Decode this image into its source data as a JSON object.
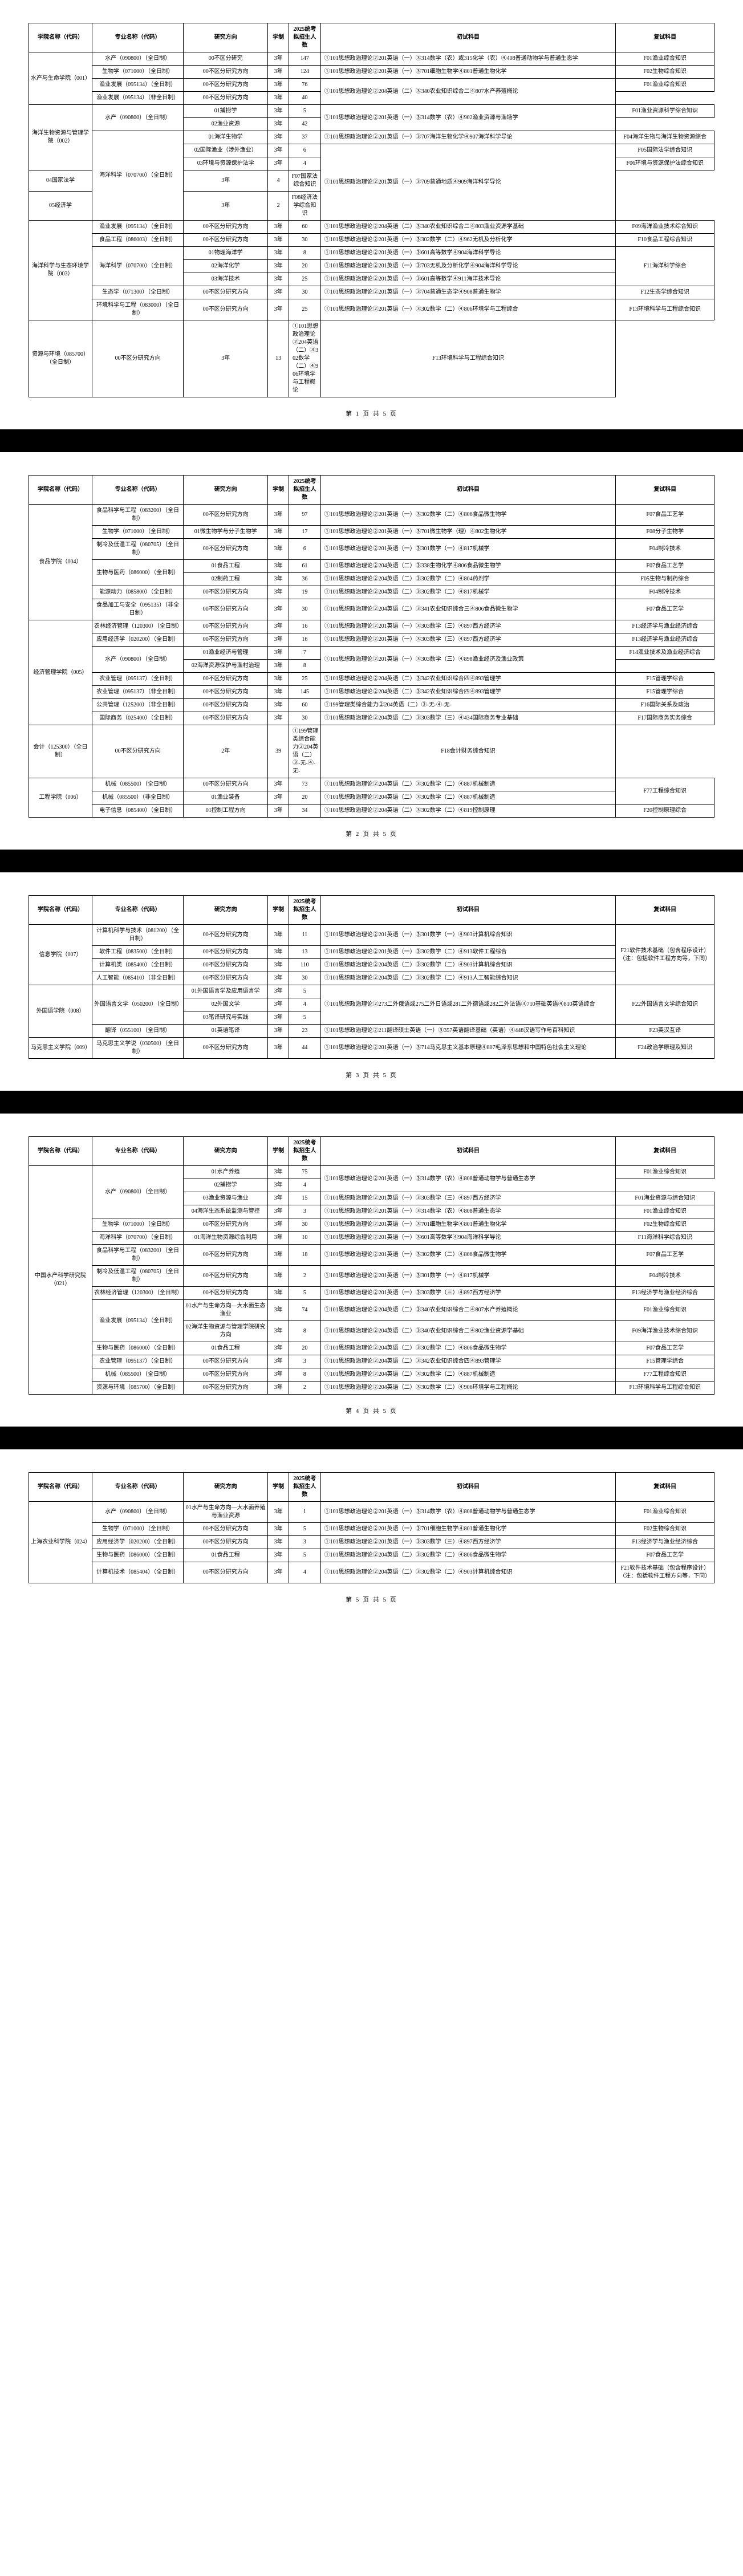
{
  "headers": {
    "school": "学院名称（代码）",
    "major": "专业名称（代码）",
    "direction": "研究方向",
    "system": "学制",
    "quota": "2025统考拟招生人数",
    "exam": "初试科目",
    "reexam": "复试科目"
  },
  "footer_prefix": "第",
  "footer_mid": "页 共",
  "footer_suffix": "页",
  "footer_total": "5",
  "pages": [
    {
      "num": "1",
      "rows": [
        {
          "school": "水产与生命学院（001）",
          "srs": 4,
          "major": "水产（090800）（全日制）",
          "mrs": 1,
          "dir": "00不区分研究",
          "sys": "3年",
          "q": "147",
          "ex": "①101思想政治理论②201英语（一）③314数学（农）或315化学（农）④408普通动物学与普通生态学",
          "re": "F01渔业综合知识"
        },
        {
          "major": "生物学（071000）（全日制）",
          "mrs": 1,
          "dir": "00不区分研究方向",
          "sys": "3年",
          "q": "124",
          "ex": "①101思想政治理论②201英语（一）③701细胞生物学④801普通生物化学",
          "re": "F02生物综合知识"
        },
        {
          "major": "渔业发展（095134）（全日制）",
          "mrs": 1,
          "dir": "00不区分研究方向",
          "sys": "3年",
          "q": "76",
          "exrs": 2,
          "ex": "①101思想政治理论②204英语（二）③340农业知识综合二④807水产养殖概论",
          "re": "F01渔业综合知识"
        },
        {
          "major": "渔业发展（095134）（非全日制）",
          "mrs": 1,
          "dir": "00不区分研究方向",
          "sys": "3年",
          "q": "40"
        },
        {
          "school": "海洋生物资源与管理学院（002）",
          "srs": 5,
          "major": "水产（090800）（全日制）",
          "mrs": 2,
          "dir": "01捕捞学",
          "sys": "3年",
          "q": "5",
          "exrs": 2,
          "ex": "①101思想政治理论②201英语（一）③314数学（农）④902渔业资源与渔场学",
          "re": "F01渔业资源科学综合知识"
        },
        {
          "dir": "02渔业资源",
          "sys": "3年",
          "q": "42"
        },
        {
          "major": "海洋科学（070700）（全日制）",
          "mrs": 5,
          "dir": "01海洋生物学",
          "sys": "3年",
          "q": "37",
          "ex": "①101思想政治理论②201英语（一）③707海洋生物化学④907海洋科学导论",
          "re": "F04海洋生物与海洋生物资源综合"
        },
        {
          "dir": "02国际渔业（涉外渔业）",
          "sys": "3年",
          "q": "6",
          "exrs": 4,
          "ex": "①101思想政治理论②201英语（一）③709普通地质④909海洋科学导论",
          "re": "F05国际法学综合知识"
        },
        {
          "dir": "03环境与资源保护法学",
          "sys": "3年",
          "q": "4",
          "re": "F06环境与资源保护法综合知识"
        },
        {
          "dir": "04国家法学",
          "sys": "3年",
          "q": "4",
          "re": "F07国家法综合知识"
        },
        {
          "dir": "05经济学",
          "sys": "3年",
          "q": "2",
          "re": "F08经济法学综合知识"
        },
        {
          "school": "海洋科学与生态环境学院（003）",
          "srs": 7,
          "major": "渔业发展（095134）（全日制）",
          "mrs": 1,
          "dir": "00不区分研究方向",
          "sys": "3年",
          "q": "60",
          "ex": "①101思想政治理论②204英语（二）③340农业知识综合二④803渔业资源学基础",
          "re": "F09海洋渔业技术综合知识"
        },
        {
          "major": "食品工程（086003）（全日制）",
          "mrs": 1,
          "dir": "00不区分研究方向",
          "sys": "3年",
          "q": "30",
          "ex": "①101思想政治理论②201英语（一）③302数学（二）④962无机及分析化学",
          "re": "F10食品工程综合知识"
        },
        {
          "major": "海洋科学（070700）（全日制）",
          "mrs": 3,
          "dir": "01物理海洋学",
          "sys": "3年",
          "q": "8",
          "ex": "①101思想政治理论②201英语（一）③601高等数学④904海洋科学导论",
          "rers": 3,
          "re": "F11海洋科学综合"
        },
        {
          "dir": "02海洋化学",
          "sys": "3年",
          "q": "20",
          "ex": "①101思想政治理论②201英语（一）③703无机及分析化学④904海洋科学导论"
        },
        {
          "dir": "03海洋技术",
          "sys": "3年",
          "q": "25",
          "ex": "①101思想政治理论②201英语（一）③601高等数学④911海洋技术导论"
        },
        {
          "major": "生态学（071300）（全日制）",
          "mrs": 1,
          "dir": "00不区分研究方向",
          "sys": "3年",
          "q": "30",
          "ex": "①101思想政治理论②201英语（一）③704普通生态学④908普通生物学",
          "re": "F12生态学综合知识"
        },
        {
          "major": "环境科学与工程（083000）（全日制）",
          "mrs": 1,
          "dir": "00不区分研究方向",
          "sys": "3年",
          "q": "25",
          "ex": "①101思想政治理论②201英语（一）③302数学（二）④806环境学与工程综合",
          "re": "F13环境科学与工程综合知识"
        },
        {
          "major": "资源与环境（085700）（全日制）",
          "mrs": 1,
          "dir": "00不区分研究方向",
          "sys": "3年",
          "q": "13",
          "ex": "①101思想政治理论②204英语（二）③302数学（二）④906环境学与工程概论",
          "re": "F13环境科学与工程综合知识"
        }
      ]
    },
    {
      "num": "2",
      "rows": [
        {
          "school": "食品学院（004）",
          "srs": 7,
          "major": "食品科学与工程（083200）（全日制）",
          "mrs": 1,
          "dir": "00不区分研究方向",
          "sys": "3年",
          "q": "97",
          "ex": "①101思想政治理论②201英语（一）③302数学（二）④806食品微生物学",
          "re": "F07食品工艺学"
        },
        {
          "major": "生物学（071000）（全日制）",
          "mrs": 1,
          "dir": "01微生物学与分子生物学",
          "sys": "3年",
          "q": "17",
          "ex": "①101思想政治理论②201英语（一）③701微生物学（理）④802生物化学",
          "re": "F08分子生物学"
        },
        {
          "major": "制冷及低温工程（080705）（全日制）",
          "mrs": 1,
          "dir": "00不区分研究方向",
          "sys": "3年",
          "q": "6",
          "ex": "①101思想政治理论②201英语（一）③301数学（一）④817机械学",
          "re": "F04制冷技术"
        },
        {
          "major": "生物与医药（086000）（全日制）",
          "mrs": 2,
          "dir": "01食品工程",
          "sys": "3年",
          "q": "61",
          "ex": "①101思想政治理论②204英语（二）③338生物化学④806食品微生物学",
          "re": "F07食品工艺学"
        },
        {
          "dir": "02制药工程",
          "sys": "3年",
          "q": "36",
          "ex": "①101思想政治理论②204英语（二）③302数学（二）④804药剂学",
          "re": "F05生物与制药综合"
        },
        {
          "major": "能源动力（085800）（全日制）",
          "mrs": 1,
          "dir": "00不区分研究方向",
          "sys": "3年",
          "q": "19",
          "ex": "①101思想政治理论②204英语（二）③302数学（二）④817机械学",
          "re": "F04制冷技术"
        },
        {
          "major": "食品加工与安全（095135）（非全日制）",
          "mrs": 1,
          "dir": "00不区分研究方向",
          "sys": "3年",
          "q": "30",
          "ex": "①101思想政治理论②204英语（二）③341农业知识综合三④806食品微生物学",
          "re": "F07食品工艺学"
        },
        {
          "school": "经济管理学院（005）",
          "srs": 8,
          "major": "农林经济管理（120300）（全日制）",
          "mrs": 1,
          "dir": "00不区分研究方向",
          "sys": "3年",
          "q": "16",
          "ex": "①101思想政治理论②201英语（一）③303数学（三）④897西方经济学",
          "re": "F13经济学与渔业经济综合"
        },
        {
          "major": "应用经济学（020200）（全日制）",
          "mrs": 1,
          "dir": "00不区分研究方向",
          "sys": "3年",
          "q": "16",
          "ex": "①101思想政治理论②201英语（一）③303数学（三）④897西方经济学",
          "re": "F13经济学与渔业经济综合"
        },
        {
          "major": "水产（090800）（全日制）",
          "mrs": 2,
          "dir": "01渔业经济与管理",
          "sys": "3年",
          "q": "7",
          "exrs": 2,
          "ex": "①101思想政治理论②201英语（一）③303数学（三）④898渔业经济及渔业政策",
          "re": "F14渔业技术及渔业经济综合"
        },
        {
          "dir": "02海洋资源保护与渔村治理",
          "sys": "3年",
          "q": "8"
        },
        {
          "major": "农业管理（095137）（全日制）",
          "mrs": 1,
          "dir": "00不区分研究方向",
          "sys": "3年",
          "q": "25",
          "ex": "①101思想政治理论②204英语（二）③342农业知识综合四④893管理学",
          "re": "F15管理学综合"
        },
        {
          "major": "农业管理（095137）（非全日制）",
          "mrs": 1,
          "dir": "00不区分研究方向",
          "sys": "3年",
          "q": "145",
          "ex": "①101思想政治理论②204英语（二）③342农业知识综合四④893管理学",
          "re": "F15管理学综合"
        },
        {
          "major": "公共管理（125200）（非全日制）",
          "mrs": 1,
          "dir": "00不区分研究方向",
          "sys": "3年",
          "q": "60",
          "ex": "①199管理类综合能力②204英语（二）③-无-④-无-",
          "re": "F16国际关系及政治"
        },
        {
          "major": "国际商务（025400）（全日制）",
          "mrs": 1,
          "dir": "00不区分研究方向",
          "sys": "3年",
          "q": "30",
          "ex": "①101思想政治理论②204英语（二）③303数学（三）④434国际商务专业基础",
          "re": "F17国际商务实务综合"
        },
        {
          "major": "会计（125300）（全日制）",
          "mrs": 1,
          "dir": "00不区分研究方向",
          "sys": "2年",
          "q": "39",
          "ex": "①199管理类综合能力②204英语（二）③-无-④-无-",
          "re": "F18会计财务综合知识"
        },
        {
          "school": "工程学院（006）",
          "srs": 3,
          "major": "机械（085500）（全日制）",
          "mrs": 1,
          "dir": "00不区分研究方向",
          "sys": "3年",
          "q": "73",
          "ex": "①101思想政治理论②204英语（二）③302数学（二）④887机械制造",
          "rers": 2,
          "re": "F77工程综合知识"
        },
        {
          "major": "机械（085500）（非全日制）",
          "mrs": 1,
          "dir": "01渔业装备",
          "sys": "3年",
          "q": "20",
          "ex": "①101思想政治理论②204英语（二）③302数学（二）④887机械制造"
        },
        {
          "major": "电子信息（085400）（全日制）",
          "mrs": 1,
          "dir": "01控制工程方向",
          "sys": "3年",
          "q": "34",
          "ex": "①101思想政治理论②204英语（二）③302数学（二）④819控制原理",
          "re": "F20控制原理综合"
        }
      ]
    },
    {
      "num": "3",
      "rows": [
        {
          "school": "信息学院（007）",
          "srs": 4,
          "major": "计算机科学与技术（081200）（全日制）",
          "mrs": 1,
          "dir": "00不区分研究方向",
          "sys": "3年",
          "q": "11",
          "ex": "①101思想政治理论②201英语（一）③301数学（一）④903计算机综合知识",
          "rers": 4,
          "re": "F21软件技术基础（包含程序设计）（注：包括软件工程方向等，下同）"
        },
        {
          "major": "软件工程（083500）（全日制）",
          "mrs": 1,
          "dir": "00不区分研究方向",
          "sys": "3年",
          "q": "13",
          "ex": "①101思想政治理论②201英语（一）③302数学（二）④913软件工程综合"
        },
        {
          "major": "计算机类（085400）（全日制）",
          "mrs": 1,
          "dir": "00不区分研究方向",
          "sys": "3年",
          "q": "110",
          "ex": "①101思想政治理论②204英语（二）③302数学（二）④903计算机综合知识"
        },
        {
          "major": "人工智能（085410）（非全日制）",
          "mrs": 1,
          "dir": "00不区分研究方向",
          "sys": "3年",
          "q": "30",
          "ex": "①101思想政治理论②204英语（二）③302数学（二）④913人工智能综合知识"
        },
        {
          "school": "外国语学院（008）",
          "srs": 4,
          "major": "外国语言文学（050200）（全日制）",
          "mrs": 3,
          "dir": "01外国语言学及应用语言学",
          "sys": "3年",
          "q": "5",
          "exrs": 3,
          "ex": "①101思想政治理论②273二外俄语或275二外日语或281二外德语或282二外法语③710基础英语④810英语综合",
          "rers": 3,
          "re": "F22外国语言文学综合知识"
        },
        {
          "dir": "02外国文学",
          "sys": "3年",
          "q": "4"
        },
        {
          "dir": "03笔译研究与实践",
          "sys": "3年",
          "q": "5"
        },
        {
          "major": "翻译（055100）（全日制）",
          "mrs": 1,
          "dir": "01英语笔译",
          "sys": "3年",
          "q": "23",
          "ex": "①101思想政治理论②211翻译硕士英语（一）③357英语翻译基础（英语）④448汉语写作与百科知识",
          "re": "F23英汉互译"
        },
        {
          "school": "马克思主义学院（009）",
          "srs": 1,
          "major": "马克思主义学说（030500）（全日制）",
          "mrs": 1,
          "dir": "00不区分研究方向",
          "sys": "3年",
          "q": "44",
          "ex": "①101思想政治理论②201英语（一）③714马克思主义基本原理④807毛泽东思想和中国特色社会主义理论",
          "re": "F24政治学原理及知识"
        }
      ]
    },
    {
      "num": "4",
      "rows": [
        {
          "school": "中国水产科学研究院（021）",
          "srs": 15,
          "major": "水产（090800）（全日制）",
          "mrs": 4,
          "dir": "01水产养殖",
          "sys": "3年",
          "q": "75",
          "exrs": 2,
          "ex": "①101思想政治理论②201英语（一）③314数学（农）④808普通动物学与普通生态学",
          "re": "F01渔业综合知识"
        },
        {
          "dir": "02捕捞学",
          "sys": "3年",
          "q": "4"
        },
        {
          "dir": "03渔业资源与渔业",
          "sys": "3年",
          "q": "15",
          "ex": "①101思想政治理论②201英语（一）③303数学（三）④897西方经济学",
          "re": "F01海业资源与综合知识"
        },
        {
          "dir": "04海洋生态系统监测与管控",
          "sys": "3年",
          "q": "3",
          "ex": "①101思想政治理论②201英语（一）③314数学（农）④808普通生态学",
          "re": "F01渔业综合知识"
        },
        {
          "major": "生物学（071000）（全日制）",
          "mrs": 1,
          "dir": "00不区分研究方向",
          "sys": "3年",
          "q": "30",
          "ex": "①101思想政治理论②201英语（一）③701细胞生物学④801普通生物化学",
          "re": "F02生物综合知识"
        },
        {
          "major": "海洋科学（070700）（全日制）",
          "mrs": 1,
          "dir": "01海洋生物资源综合利用",
          "sys": "3年",
          "q": "10",
          "ex": "①101思想政治理论②201英语（一）③601高等数学④904海洋科学导论",
          "re": "F11海洋科学综合知识"
        },
        {
          "major": "食品科学与工程（083200）（全日制）",
          "mrs": 1,
          "dir": "00不区分研究方向",
          "sys": "3年",
          "q": "18",
          "ex": "①101思想政治理论②201英语（一）③302数学（二）④806食品微生物学",
          "re": "F07食品工艺学"
        },
        {
          "major": "制冷及低温工程（080705）（全日制）",
          "mrs": 1,
          "dir": "00不区分研究方向",
          "sys": "3年",
          "q": "2",
          "ex": "①101思想政治理论②201英语（一）③301数学（一）④817机械学",
          "re": "F04制冷技术"
        },
        {
          "major": "农林经济管理（120300）（全日制）",
          "mrs": 1,
          "dir": "00不区分研究方向",
          "sys": "3年",
          "q": "5",
          "ex": "①101思想政治理论②201英语（一）③303数学（三）④897西方经济学",
          "re": "F13经济学与渔业经济综合"
        },
        {
          "major": "渔业发展（095134）（全日制）",
          "mrs": 2,
          "dir": "01水产与生命方向—大水面生态渔业",
          "sys": "3年",
          "q": "74",
          "ex": "①101思想政治理论②204英语（二）③340农业知识综合二④807水产养殖概论",
          "re": "F01渔业综合知识"
        },
        {
          "dir": "02海洋生物资源与管理学院研究方向",
          "sys": "3年",
          "q": "8",
          "ex": "①101思想政治理论②204英语（二）③340农业知识综合二④802渔业资源学基础",
          "re": "F09海洋渔业技术综合知识"
        },
        {
          "major": "生物与医药（086000）（全日制）",
          "mrs": 1,
          "dir": "01食品工程",
          "sys": "3年",
          "q": "20",
          "ex": "①101思想政治理论②204英语（二）③302数学（二）④806食品微生物学",
          "re": "F07食品工艺学"
        },
        {
          "major": "农业管理（095137）（全日制）",
          "mrs": 1,
          "dir": "00不区分研究方向",
          "sys": "3年",
          "q": "3",
          "ex": "①101思想政治理论②204英语（二）③342农业知识综合四④893管理学",
          "re": "F15管理学综合"
        },
        {
          "major": "机械（085500）（全日制）",
          "mrs": 1,
          "dir": "00不区分研究方向",
          "sys": "3年",
          "q": "8",
          "ex": "①101思想政治理论②204英语（二）③302数学（二）④887机械制造",
          "re": "F77工程综合知识"
        },
        {
          "major": "资源与环境（085700）（全日制）",
          "mrs": 1,
          "dir": "00不区分研究方向",
          "sys": "3年",
          "q": "2",
          "ex": "①101思想政治理论②204英语（二）③302数学（二）④906环境学与工程概论",
          "re": "F13环境科学与工程综合知识"
        }
      ]
    },
    {
      "num": "5",
      "rows": [
        {
          "school": "上海农业科学院（024）",
          "srs": 5,
          "major": "水产（090800）（全日制）",
          "mrs": 1,
          "dir": "01水产与生命方向—大水面养殖与渔业资源",
          "sys": "3年",
          "q": "1",
          "ex": "①101思想政治理论②201英语（一）③314数学（农）④808普通动物学与普通生态学",
          "re": "F01渔业综合知识"
        },
        {
          "major": "生物学（071000）（全日制）",
          "mrs": 1,
          "dir": "00不区分研究方向",
          "sys": "3年",
          "q": "5",
          "ex": "①101思想政治理论②201英语（一）③701细胞生物学④801普通生物化学",
          "re": "F02生物综合知识"
        },
        {
          "major": "应用经济学（020200）（全日制）",
          "mrs": 1,
          "dir": "00不区分研究方向",
          "sys": "3年",
          "q": "3",
          "ex": "①101思想政治理论②201英语（一）③303数学（三）④897西方经济学",
          "re": "F13经济学与渔业经济综合"
        },
        {
          "major": "生物与医药（086000）（全日制）",
          "mrs": 1,
          "dir": "01食品工程",
          "sys": "3年",
          "q": "5",
          "ex": "①101思想政治理论②204英语（二）③302数学（二）④806食品微生物学",
          "re": "F07食品工艺学"
        },
        {
          "major": "计算机技术（085404）（全日制）",
          "mrs": 1,
          "dir": "00不区分研究方向",
          "sys": "3年",
          "q": "4",
          "ex": "①101思想政治理论②204英语（二）③302数学（二）④903计算机综合知识",
          "re": "F21软件技术基础（包含程序设计）（注：包括软件工程方向等，下同）"
        }
      ]
    }
  ]
}
